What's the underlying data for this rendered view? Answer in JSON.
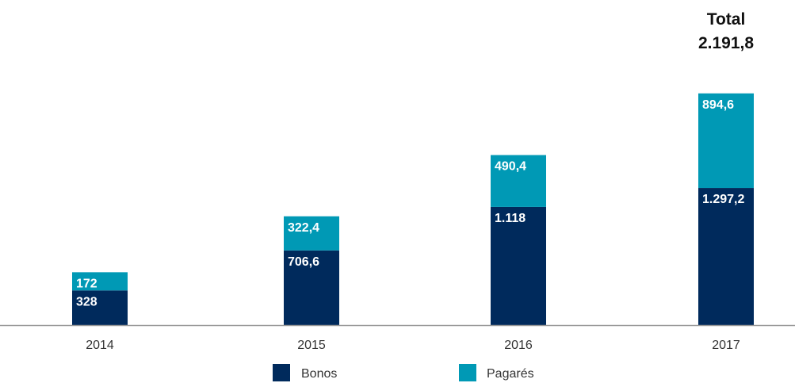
{
  "chart_data": {
    "type": "bar",
    "stacked": true,
    "categories": [
      "2014",
      "2015",
      "2016",
      "2017"
    ],
    "series": [
      {
        "name": "Bonos",
        "values": [
          328,
          706.6,
          1118,
          1297.2
        ],
        "labels": [
          "328",
          "706,6",
          "1.118",
          "1.297,2"
        ],
        "color": "#002a5c"
      },
      {
        "name": "Pagarés",
        "values": [
          172,
          322.4,
          490.4,
          894.6
        ],
        "labels": [
          "172",
          "322,4",
          "490,4",
          "894,6"
        ],
        "color": "#0099b5"
      }
    ],
    "annotation": {
      "category": "2017",
      "line1": "Total",
      "line2": "2.191,8"
    },
    "ylim": [
      0,
      2400
    ],
    "grid": false,
    "legend_position": "bottom-center",
    "axis_color": "#999999"
  }
}
